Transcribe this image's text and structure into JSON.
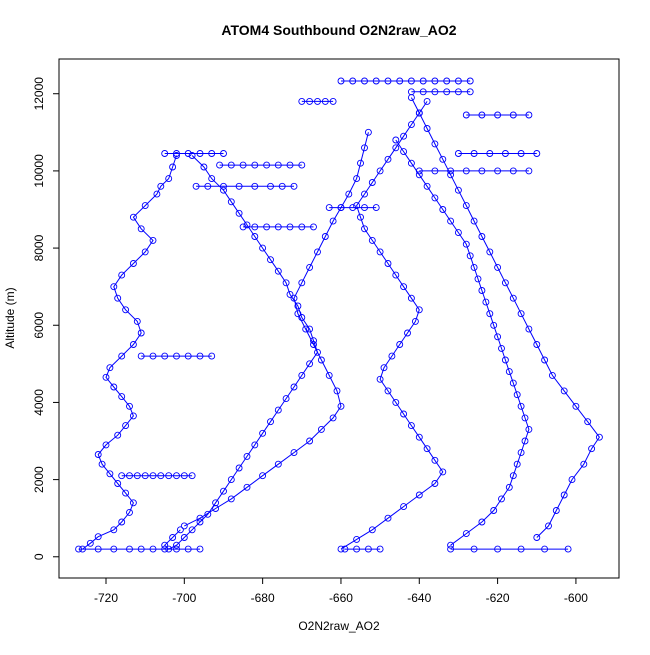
{
  "chart_data": {
    "type": "scatter",
    "title": "ATOM4 Southbound O2N2raw_AO2",
    "xlabel": "O2N2raw_AO2",
    "ylabel": "Altitude (m)",
    "xlim": [
      -732,
      -589
    ],
    "ylim": [
      -550,
      12900
    ],
    "xticks": [
      -720,
      -700,
      -680,
      -660,
      -640,
      -620,
      -600
    ],
    "xtick_labels": [
      "-720",
      "-700",
      "-680",
      "-660",
      "-640",
      "-620",
      "-600"
    ],
    "yticks": [
      0,
      2000,
      4000,
      6000,
      8000,
      10000,
      12000
    ],
    "ytick_labels": [
      "0",
      "2000",
      "4000",
      "6000",
      "8000",
      "10000",
      "12000"
    ],
    "grid": false,
    "legend": "none",
    "marker": "open-circle",
    "connected": true,
    "series_color": "#0000ff",
    "series": [
      {
        "x": [
          -726,
          -724,
          -722,
          -718,
          -716,
          -714,
          -713,
          -715,
          -717,
          -719,
          -721,
          -722,
          -720,
          -717,
          -715,
          -713,
          -714,
          -716,
          -718,
          -720,
          -719,
          -716,
          -713,
          -711,
          -712,
          -715,
          -717,
          -718,
          -716,
          -713,
          -710,
          -708,
          -711,
          -713,
          -710,
          -707,
          -706,
          -704,
          -703,
          -702
        ],
        "y": [
          200,
          350,
          520,
          700,
          900,
          1150,
          1400,
          1650,
          1900,
          2150,
          2400,
          2650,
          2900,
          3150,
          3400,
          3650,
          3900,
          4150,
          4400,
          4650,
          4900,
          5200,
          5500,
          5800,
          6100,
          6400,
          6700,
          7000,
          7300,
          7600,
          7900,
          8200,
          8500,
          8800,
          9100,
          9400,
          9600,
          9800,
          10100,
          10400
        ]
      },
      {
        "x": [
          -698,
          -695,
          -693,
          -690,
          -688,
          -686,
          -684,
          -682,
          -680,
          -678,
          -676,
          -674,
          -673,
          -671,
          -670,
          -668,
          -667,
          -666,
          -668,
          -670,
          -672,
          -674,
          -676,
          -678,
          -680,
          -682,
          -684,
          -686,
          -688,
          -690,
          -692,
          -694,
          -696,
          -698,
          -700,
          -702,
          -704,
          -705,
          -703,
          -701
        ],
        "y": [
          10400,
          10100,
          9800,
          9500,
          9200,
          8900,
          8600,
          8300,
          8000,
          7700,
          7400,
          7100,
          6800,
          6500,
          6200,
          5900,
          5600,
          5300,
          5000,
          4700,
          4400,
          4100,
          3800,
          3500,
          3200,
          2900,
          2600,
          2300,
          2000,
          1700,
          1400,
          1100,
          900,
          700,
          500,
          300,
          200,
          300,
          500,
          700
        ]
      },
      {
        "x": [
          -700,
          -696,
          -692,
          -688,
          -684,
          -680,
          -676,
          -672,
          -668,
          -665,
          -662,
          -660,
          -661,
          -663,
          -665,
          -667,
          -669,
          -671,
          -672,
          -670,
          -668,
          -666,
          -664,
          -662,
          -660,
          -658,
          -656,
          -655,
          -654,
          -653
        ],
        "y": [
          800,
          1000,
          1250,
          1500,
          1800,
          2100,
          2400,
          2700,
          3000,
          3300,
          3600,
          3900,
          4300,
          4700,
          5100,
          5500,
          5900,
          6300,
          6700,
          7100,
          7500,
          7900,
          8300,
          8700,
          9050,
          9400,
          9800,
          10200,
          10600,
          11000
        ]
      },
      {
        "x": [
          -660,
          -656,
          -652,
          -648,
          -644,
          -640,
          -636,
          -634,
          -636,
          -638,
          -640,
          -642,
          -644,
          -646,
          -648,
          -650,
          -649,
          -647,
          -645,
          -643,
          -641,
          -640,
          -642,
          -644,
          -646,
          -648,
          -650,
          -652,
          -654,
          -655,
          -656,
          -654,
          -652,
          -650,
          -648,
          -646,
          -644,
          -642,
          -640,
          -638
        ],
        "y": [
          200,
          450,
          700,
          1000,
          1300,
          1600,
          1900,
          2200,
          2500,
          2800,
          3100,
          3400,
          3700,
          4000,
          4300,
          4600,
          4900,
          5200,
          5500,
          5800,
          6100,
          6400,
          6700,
          7000,
          7300,
          7600,
          7900,
          8200,
          8500,
          8800,
          9100,
          9400,
          9700,
          10000,
          10300,
          10600,
          10900,
          11200,
          11500,
          11800
        ]
      },
      {
        "x": [
          -632,
          -628,
          -624,
          -621,
          -619,
          -617,
          -616,
          -615,
          -614,
          -613,
          -612,
          -613,
          -614,
          -615,
          -616,
          -617,
          -618,
          -619,
          -620,
          -621,
          -622,
          -623,
          -624,
          -625,
          -626,
          -627,
          -628,
          -630,
          -632,
          -634,
          -636,
          -638,
          -640,
          -642,
          -644,
          -646
        ],
        "y": [
          300,
          600,
          900,
          1200,
          1500,
          1800,
          2100,
          2400,
          2700,
          3000,
          3300,
          3600,
          3900,
          4200,
          4500,
          4800,
          5100,
          5400,
          5700,
          6000,
          6300,
          6600,
          6900,
          7200,
          7500,
          7800,
          8100,
          8400,
          8700,
          9000,
          9300,
          9600,
          9900,
          10200,
          10500,
          10800
        ]
      },
      {
        "x": [
          -610,
          -607,
          -605,
          -603,
          -601,
          -598,
          -596,
          -594,
          -597,
          -600,
          -603,
          -606,
          -608,
          -610,
          -612,
          -614,
          -616,
          -618,
          -620,
          -622,
          -624,
          -626,
          -628,
          -630,
          -632,
          -634,
          -636,
          -638,
          -640,
          -642
        ],
        "y": [
          500,
          800,
          1200,
          1600,
          2000,
          2400,
          2800,
          3100,
          3500,
          3900,
          4300,
          4700,
          5100,
          5500,
          5900,
          6300,
          6700,
          7100,
          7500,
          7900,
          8300,
          8700,
          9100,
          9500,
          9900,
          10300,
          10700,
          11100,
          11500,
          11900
        ]
      },
      {
        "x": [
          -727,
          -722,
          -718,
          -714,
          -711,
          -708,
          -705,
          -702,
          -699,
          -696
        ],
        "y": [
          200,
          200,
          200,
          200,
          200,
          200,
          200,
          200,
          200,
          200
        ]
      },
      {
        "x": [
          -716,
          -714,
          -712,
          -710,
          -708,
          -706,
          -704,
          -702,
          -700,
          -698
        ],
        "y": [
          2100,
          2100,
          2100,
          2100,
          2100,
          2100,
          2100,
          2100,
          2100,
          2100
        ]
      },
      {
        "x": [
          -711,
          -708,
          -705,
          -702,
          -699,
          -696,
          -693
        ],
        "y": [
          5200,
          5200,
          5200,
          5200,
          5200,
          5200,
          5200
        ]
      },
      {
        "x": [
          -705,
          -702,
          -699,
          -696,
          -693,
          -690
        ],
        "y": [
          10450,
          10450,
          10450,
          10450,
          10450,
          10450
        ]
      },
      {
        "x": [
          -697,
          -694,
          -690,
          -686,
          -682,
          -678,
          -675,
          -672
        ],
        "y": [
          9600,
          9600,
          9600,
          9600,
          9600,
          9600,
          9600,
          9600
        ]
      },
      {
        "x": [
          -685,
          -682,
          -679,
          -676,
          -673,
          -670,
          -667
        ],
        "y": [
          8550,
          8550,
          8550,
          8550,
          8550,
          8550,
          8550
        ]
      },
      {
        "x": [
          -691,
          -688,
          -685,
          -682,
          -679,
          -676,
          -673,
          -670
        ],
        "y": [
          10150,
          10150,
          10150,
          10150,
          10150,
          10150,
          10150,
          10150
        ]
      },
      {
        "x": [
          -670,
          -668,
          -666,
          -664,
          -662
        ],
        "y": [
          11800,
          11800,
          11800,
          11800,
          11800
        ]
      },
      {
        "x": [
          -660,
          -657,
          -654,
          -651,
          -648,
          -645,
          -642,
          -639,
          -636,
          -633,
          -630,
          -627
        ],
        "y": [
          12330,
          12330,
          12330,
          12330,
          12330,
          12330,
          12330,
          12330,
          12330,
          12330,
          12330,
          12330
        ]
      },
      {
        "x": [
          -642,
          -639,
          -636,
          -633,
          -630,
          -627
        ],
        "y": [
          12050,
          12050,
          12050,
          12050,
          12050,
          12050
        ]
      },
      {
        "x": [
          -628,
          -624,
          -620,
          -616,
          -612
        ],
        "y": [
          11450,
          11450,
          11450,
          11450,
          11450
        ]
      },
      {
        "x": [
          -663,
          -660,
          -657,
          -654,
          -651
        ],
        "y": [
          9050,
          9050,
          9050,
          9050,
          9050
        ]
      },
      {
        "x": [
          -659,
          -656,
          -653,
          -650
        ],
        "y": [
          200,
          200,
          200,
          200
        ]
      },
      {
        "x": [
          -632,
          -626,
          -620,
          -614,
          -608,
          -602
        ],
        "y": [
          200,
          200,
          200,
          200,
          200,
          200
        ]
      },
      {
        "x": [
          -630,
          -626,
          -622,
          -618,
          -614,
          -610
        ],
        "y": [
          10450,
          10450,
          10450,
          10450,
          10450,
          10450
        ]
      },
      {
        "x": [
          -640,
          -636,
          -632,
          -628,
          -624,
          -620,
          -616,
          -612
        ],
        "y": [
          10000,
          10000,
          10000,
          10000,
          10000,
          10000,
          10000,
          10000
        ]
      }
    ]
  }
}
